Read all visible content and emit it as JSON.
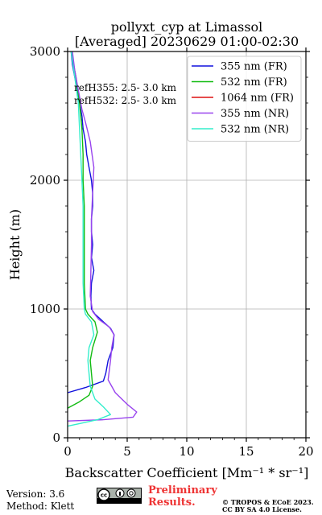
{
  "chart_data": {
    "type": "line",
    "title": "pollyxt_cyp at Limassol",
    "subtitle": "[Averaged] 20230629 01:00-02:30",
    "xlabel": "Backscatter Coefficient [Mm⁻¹ * sr⁻¹]",
    "ylabel": "Height (m)",
    "xlim": [
      0,
      20
    ],
    "ylim": [
      0,
      3000
    ],
    "xticks": [
      0,
      5,
      10,
      15,
      20
    ],
    "yticks": [
      0,
      1000,
      2000,
      3000
    ],
    "grid": true,
    "legend_position": "top-right",
    "annotations": [
      "refH355:  2.5- 3.0 km",
      "refH532:  2.5- 3.0 km"
    ],
    "series": [
      {
        "name": "355 nm (FR)",
        "color": "#1010dd",
        "points": [
          [
            0,
            350
          ],
          [
            1.5,
            390
          ],
          [
            3.0,
            440
          ],
          [
            3.2,
            500
          ],
          [
            3.4,
            600
          ],
          [
            3.8,
            700
          ],
          [
            3.9,
            800
          ],
          [
            3.6,
            850
          ],
          [
            3.0,
            900
          ],
          [
            2.3,
            960
          ],
          [
            2.0,
            1000
          ],
          [
            1.95,
            1100
          ],
          [
            2.0,
            1200
          ],
          [
            2.2,
            1300
          ],
          [
            2.0,
            1400
          ],
          [
            2.1,
            1500
          ],
          [
            2.0,
            1600
          ],
          [
            2.0,
            1700
          ],
          [
            2.1,
            1800
          ],
          [
            2.1,
            1900
          ],
          [
            2.0,
            2000
          ],
          [
            1.8,
            2100
          ],
          [
            1.6,
            2200
          ],
          [
            1.5,
            2300
          ],
          [
            1.3,
            2400
          ],
          [
            1.2,
            2500
          ],
          [
            1.0,
            2600
          ],
          [
            0.8,
            2700
          ],
          [
            0.6,
            2800
          ],
          [
            0.4,
            2900
          ],
          [
            0.3,
            3000
          ]
        ]
      },
      {
        "name": "532 nm (FR)",
        "color": "#11bb11",
        "points": [
          [
            0,
            230
          ],
          [
            1.0,
            280
          ],
          [
            1.8,
            330
          ],
          [
            2.1,
            400
          ],
          [
            2.0,
            500
          ],
          [
            1.9,
            600
          ],
          [
            2.1,
            700
          ],
          [
            2.5,
            820
          ],
          [
            2.3,
            900
          ],
          [
            1.7,
            960
          ],
          [
            1.5,
            1000
          ],
          [
            1.4,
            1200
          ],
          [
            1.4,
            1400
          ],
          [
            1.4,
            1600
          ],
          [
            1.4,
            1800
          ],
          [
            1.3,
            2000
          ],
          [
            1.3,
            2200
          ],
          [
            1.2,
            2400
          ],
          [
            1.0,
            2600
          ],
          [
            0.7,
            2800
          ],
          [
            0.3,
            3000
          ]
        ]
      },
      {
        "name": "1064 nm (FR)",
        "color": "#dd1111",
        "points": []
      },
      {
        "name": "355 nm (NR)",
        "color": "#9944ee",
        "points": [
          [
            0,
            130
          ],
          [
            3.0,
            140
          ],
          [
            5.5,
            160
          ],
          [
            5.8,
            200
          ],
          [
            5.0,
            260
          ],
          [
            4.0,
            350
          ],
          [
            3.4,
            450
          ],
          [
            3.6,
            600
          ],
          [
            3.7,
            700
          ],
          [
            3.9,
            800
          ],
          [
            3.5,
            860
          ],
          [
            2.6,
            920
          ],
          [
            2.1,
            980
          ],
          [
            1.9,
            1100
          ],
          [
            1.95,
            1300
          ],
          [
            2.0,
            1500
          ],
          [
            2.0,
            1700
          ],
          [
            2.1,
            1900
          ],
          [
            2.2,
            2100
          ],
          [
            1.9,
            2300
          ],
          [
            1.5,
            2450
          ],
          [
            1.2,
            2550
          ],
          [
            0.9,
            2700
          ],
          [
            0.6,
            2850
          ],
          [
            0.4,
            3000
          ]
        ]
      },
      {
        "name": "532 nm (NR)",
        "color": "#33eecc",
        "points": [
          [
            0,
            90
          ],
          [
            1.0,
            110
          ],
          [
            2.5,
            140
          ],
          [
            3.6,
            180
          ],
          [
            3.0,
            240
          ],
          [
            2.3,
            300
          ],
          [
            1.9,
            400
          ],
          [
            1.8,
            500
          ],
          [
            1.7,
            600
          ],
          [
            1.8,
            700
          ],
          [
            2.2,
            800
          ],
          [
            2.0,
            900
          ],
          [
            1.5,
            960
          ],
          [
            1.4,
            1000
          ],
          [
            1.3,
            1200
          ],
          [
            1.3,
            1400
          ],
          [
            1.3,
            1600
          ],
          [
            1.3,
            1800
          ],
          [
            1.2,
            2000
          ],
          [
            1.1,
            2200
          ],
          [
            1.0,
            2400
          ],
          [
            0.9,
            2600
          ],
          [
            0.6,
            2800
          ],
          [
            0.3,
            3000
          ]
        ]
      }
    ]
  },
  "footer": {
    "version": "Version: 3.6",
    "method": "Method: Klett",
    "preliminary_line1": "Preliminary",
    "preliminary_line2": "Results.",
    "copyright_line1": "© TROPOS & ECoE 2023.",
    "copyright_line2": "CC BY SA 4.0 License."
  }
}
